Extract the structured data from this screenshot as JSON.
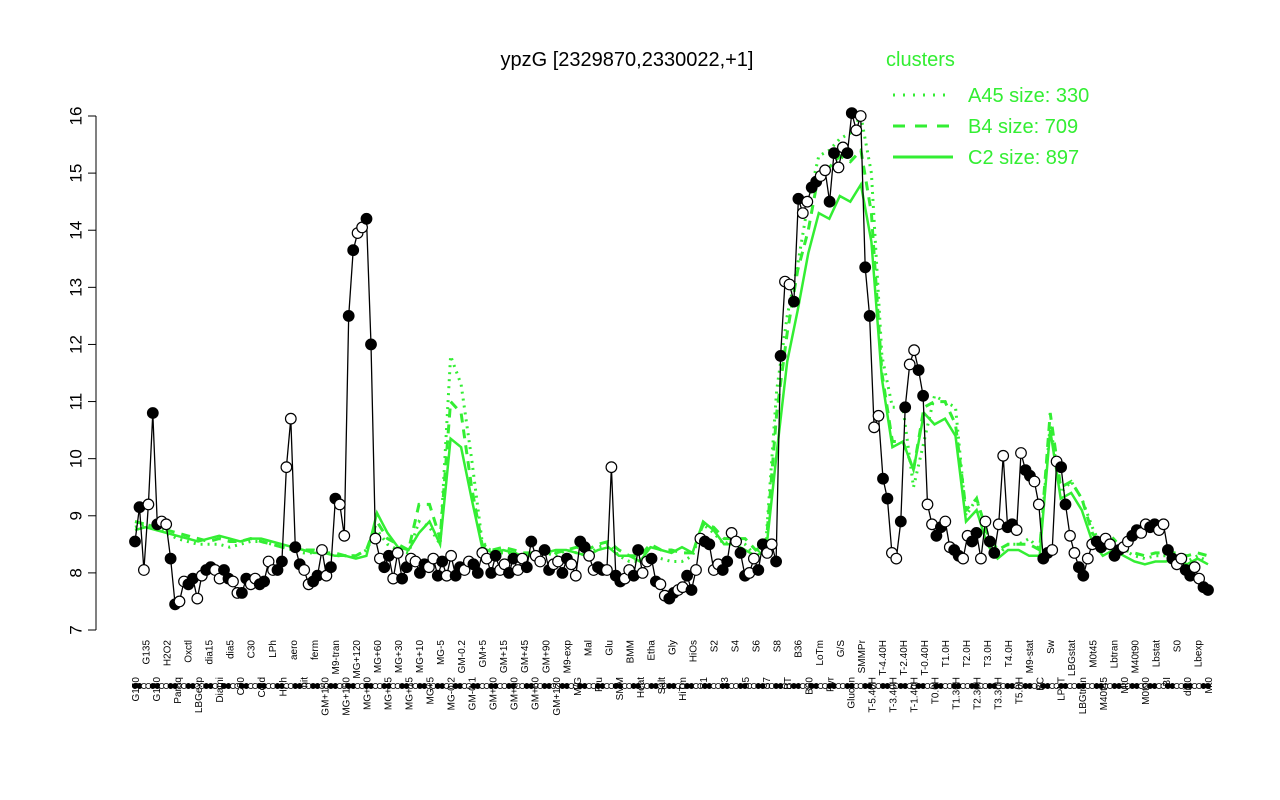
{
  "chart_data": {
    "type": "line",
    "title": "ypzG [2329870,2330022,+1]",
    "xlabel": "",
    "ylabel": "",
    "ylim": [
      7,
      16
    ],
    "yticks": [
      7,
      8,
      9,
      10,
      11,
      12,
      13,
      14,
      15,
      16
    ],
    "grid": false,
    "legend": {
      "title": "clusters",
      "placement": "top-right",
      "color": "#33ee33",
      "entries": [
        {
          "label": "A45 size: 330",
          "style": "dotted"
        },
        {
          "label": "B4 size: 709",
          "style": "dashed"
        },
        {
          "label": "C2 size: 897",
          "style": "solid"
        }
      ]
    },
    "x_labels_visible": [
      "G150",
      "G135",
      "G180",
      "H2O2",
      "Paraq",
      "Oxctl",
      "LBGexp",
      "dia15",
      "Diami",
      "dia5",
      "C90",
      "C30",
      "Cold",
      "LPh",
      "HPh",
      "aero",
      "nit",
      "ferm",
      "GM+150",
      "M9-tran",
      "MG+150",
      "MG+120",
      "MG+90",
      "MG+60",
      "MG+45",
      "MG+30",
      "MG+15",
      "MG+10",
      "MG+5",
      "MG-5",
      "MG-0.2",
      "GM-0.2",
      "GM-0.1",
      "GM+5",
      "GM+10",
      "GM+15",
      "GM+30",
      "GM+45",
      "GM+60",
      "GM+90",
      "GM+120",
      "M9-exp",
      "M/G",
      "Mal",
      "Fru",
      "Glu",
      "SMM",
      "BMM",
      "Heat",
      "Etha",
      "Salt",
      "Gly",
      "HiTm",
      "HiOs",
      "S1",
      "S2",
      "S3",
      "S4",
      "S5",
      "S6",
      "S7",
      "S8",
      "BT",
      "B36",
      "B60",
      "LoTm",
      "Pyr",
      "G/S",
      "Glucon",
      "SMMPr",
      "T-5.40H",
      "T-4.40H",
      "T-3.40H",
      "T-2.40H",
      "T-1.40H",
      "T-0.40H",
      "T0.0H",
      "T1.0H",
      "T1.30H",
      "T2.0H",
      "T2.30H",
      "T3.0H",
      "T3.30H",
      "T4.0H",
      "T5.0H",
      "M9-stat",
      "BC",
      "Sw",
      "LPhT",
      "LBGstat",
      "LBGtran",
      "M0t45",
      "M40t45",
      "Lbtran",
      "Mt0",
      "M40t90",
      "M0t90",
      "Lbstat",
      "BI",
      "S0",
      "dia0",
      "Lbexp",
      "Mt0"
    ],
    "series": [
      {
        "name": "",
        "color": "#000000",
        "values": [
          8.55,
          9.15,
          8.05,
          9.2,
          10.8,
          8.85,
          8.9,
          8.85,
          8.25,
          7.45,
          7.5,
          7.85,
          7.8,
          7.9,
          7.55,
          7.95,
          8.05,
          8.1,
          8.05,
          7.9,
          8.05,
          7.9,
          7.85,
          7.65,
          7.65,
          7.9,
          7.8,
          7.9,
          7.8,
          7.85,
          8.2,
          8.05,
          8.05,
          8.2,
          9.85,
          10.7,
          8.45,
          8.15,
          8.05,
          7.8,
          7.85,
          7.95,
          8.4,
          7.95,
          8.1,
          9.3,
          9.2,
          8.65,
          12.5,
          13.65,
          13.95,
          14.05,
          14.2,
          12.0,
          8.6,
          8.25,
          8.1,
          8.3,
          7.9,
          8.35,
          7.9,
          8.1,
          8.25,
          8.2,
          8.0,
          8.15,
          8.1,
          8.25,
          7.95,
          8.2,
          7.95,
          8.3,
          7.95,
          8.1,
          8.05,
          8.2,
          8.15,
          8.0,
          8.35,
          8.25,
          8.0,
          8.3,
          8.05,
          8.15,
          8.0,
          8.25,
          8.05,
          8.25,
          8.1,
          8.55,
          8.3,
          8.2,
          8.4,
          8.05,
          8.15,
          8.2,
          8.0,
          8.25,
          8.15,
          7.95,
          8.55,
          8.45,
          8.3,
          8.05,
          8.1,
          8.05,
          8.05,
          9.85,
          7.95,
          7.85,
          7.9,
          8.05,
          7.95,
          8.4,
          8.0,
          8.2,
          8.25,
          7.85,
          7.8,
          7.6,
          7.55,
          7.65,
          7.7,
          7.75,
          7.95,
          7.7,
          8.05,
          8.6,
          8.55,
          8.5,
          8.05,
          8.15,
          8.05,
          8.2,
          8.7,
          8.55,
          8.35,
          7.95,
          8.0,
          8.25,
          8.05,
          8.5,
          8.35,
          8.5,
          8.2,
          11.8,
          13.1,
          13.05,
          12.75,
          14.55,
          14.3,
          14.5,
          14.75,
          14.85,
          14.95,
          15.05,
          14.5,
          15.35,
          15.1,
          15.45,
          15.35,
          16.05,
          15.75,
          16.0,
          13.35,
          12.5,
          10.55,
          10.75,
          9.65,
          9.3,
          8.35,
          8.25,
          8.9,
          10.9,
          11.65,
          11.9,
          11.55,
          11.1,
          9.2,
          8.85,
          8.65,
          8.8,
          8.9,
          8.45,
          8.4,
          8.3,
          8.25,
          8.65,
          8.55,
          8.7,
          8.25,
          8.9,
          8.55,
          8.35,
          8.85,
          10.05,
          8.8,
          8.85,
          8.75,
          10.1,
          9.8,
          9.7,
          9.6,
          9.2,
          8.25,
          8.35,
          8.4,
          9.95,
          9.85,
          9.2,
          8.65,
          8.35,
          8.1,
          7.95,
          8.25,
          8.5,
          8.55,
          8.45,
          8.6,
          8.5,
          8.3,
          8.4,
          8.45,
          8.55,
          8.65,
          8.75,
          8.7,
          8.85,
          8.8,
          8.85,
          8.75,
          8.85,
          8.4,
          8.25,
          8.15,
          8.25,
          8.05,
          7.95,
          8.1,
          7.9,
          7.75,
          7.7
        ]
      },
      {
        "name": "A45 size: 330",
        "style": "dotted",
        "color": "#33ee33",
        "values": [
          8.8,
          8.85,
          8.8,
          8.7,
          8.6,
          8.55,
          8.5,
          8.5,
          8.5,
          8.45,
          8.5,
          8.55,
          8.55,
          8.5,
          8.45,
          8.4,
          8.35,
          8.35,
          8.35,
          8.3,
          8.3,
          8.3,
          8.4,
          8.75,
          8.5,
          8.4,
          8.35,
          8.9,
          8.8,
          8.5,
          11.8,
          11.3,
          10.0,
          8.55,
          8.35,
          8.35,
          8.35,
          8.3,
          8.3,
          8.35,
          8.3,
          8.4,
          8.35,
          8.3,
          8.45,
          8.5,
          8.3,
          8.2,
          8.2,
          8.3,
          8.25,
          8.2,
          8.2,
          8.3,
          8.85,
          8.7,
          8.5,
          8.6,
          8.5,
          8.3,
          8.6,
          11.2,
          12.5,
          13.4,
          14.5,
          15.3,
          15.4,
          15.6,
          15.7,
          16.0,
          15.0,
          11.8,
          10.9,
          10.9,
          9.5,
          10.3,
          11.1,
          11.0,
          10.9,
          9.0,
          9.3,
          8.6,
          8.3,
          8.5,
          8.5,
          8.6,
          8.4,
          10.6,
          9.4,
          9.6,
          9.3,
          8.8,
          8.4,
          8.5,
          8.4,
          8.3,
          8.25,
          8.3,
          8.3,
          8.3,
          8.2,
          8.3,
          8.2
        ]
      },
      {
        "name": "B4 size: 709",
        "style": "dashed",
        "color": "#33ee33",
        "values": [
          8.9,
          8.85,
          8.8,
          8.75,
          8.7,
          8.65,
          8.6,
          8.55,
          8.6,
          8.55,
          8.55,
          8.6,
          8.55,
          8.5,
          8.45,
          8.45,
          8.4,
          8.4,
          8.35,
          8.35,
          8.3,
          8.3,
          8.4,
          8.9,
          8.6,
          8.5,
          8.4,
          9.2,
          9.2,
          8.6,
          11.0,
          10.8,
          9.5,
          8.5,
          8.4,
          8.45,
          8.4,
          8.35,
          8.35,
          8.4,
          8.35,
          8.4,
          8.45,
          8.4,
          8.5,
          8.55,
          8.4,
          8.3,
          8.3,
          8.5,
          8.4,
          8.4,
          8.35,
          8.35,
          8.85,
          8.8,
          8.6,
          8.6,
          8.6,
          8.4,
          8.5,
          10.8,
          12.2,
          13.3,
          14.0,
          15.0,
          15.1,
          15.3,
          15.2,
          15.4,
          14.3,
          11.5,
          10.3,
          10.3,
          9.8,
          10.9,
          11.0,
          11.0,
          10.6,
          9.1,
          9.3,
          8.7,
          8.4,
          8.5,
          8.5,
          8.5,
          8.4,
          10.8,
          9.5,
          9.6,
          9.3,
          8.7,
          8.4,
          8.6,
          8.4,
          8.35,
          8.3,
          8.35,
          8.35,
          8.35,
          8.3,
          8.35,
          8.3
        ]
      },
      {
        "name": "C2 size: 897",
        "style": "solid",
        "color": "#33ee33",
        "values": [
          8.75,
          8.8,
          8.75,
          8.7,
          8.65,
          8.6,
          8.55,
          8.6,
          8.65,
          8.6,
          8.55,
          8.6,
          8.6,
          8.55,
          8.5,
          8.45,
          8.4,
          8.35,
          8.35,
          8.3,
          8.3,
          8.25,
          8.3,
          9.05,
          8.7,
          8.45,
          8.4,
          8.7,
          8.9,
          8.5,
          10.35,
          10.2,
          9.3,
          8.45,
          8.35,
          8.4,
          8.35,
          8.3,
          8.35,
          8.35,
          8.4,
          8.4,
          8.35,
          8.3,
          8.4,
          8.45,
          8.3,
          8.3,
          8.2,
          8.45,
          8.4,
          8.35,
          8.45,
          8.35,
          8.9,
          8.75,
          8.5,
          8.5,
          8.4,
          8.3,
          8.4,
          10.1,
          11.7,
          12.6,
          13.6,
          14.3,
          14.2,
          14.6,
          14.5,
          14.8,
          13.8,
          11.4,
          10.2,
          10.3,
          9.8,
          10.8,
          10.6,
          10.7,
          10.4,
          8.9,
          9.1,
          8.5,
          8.25,
          8.4,
          8.4,
          8.3,
          8.3,
          10.5,
          9.3,
          9.4,
          9.1,
          8.55,
          8.3,
          8.4,
          8.3,
          8.2,
          8.15,
          8.2,
          8.2,
          8.25,
          8.15,
          8.25,
          8.15
        ]
      }
    ]
  }
}
